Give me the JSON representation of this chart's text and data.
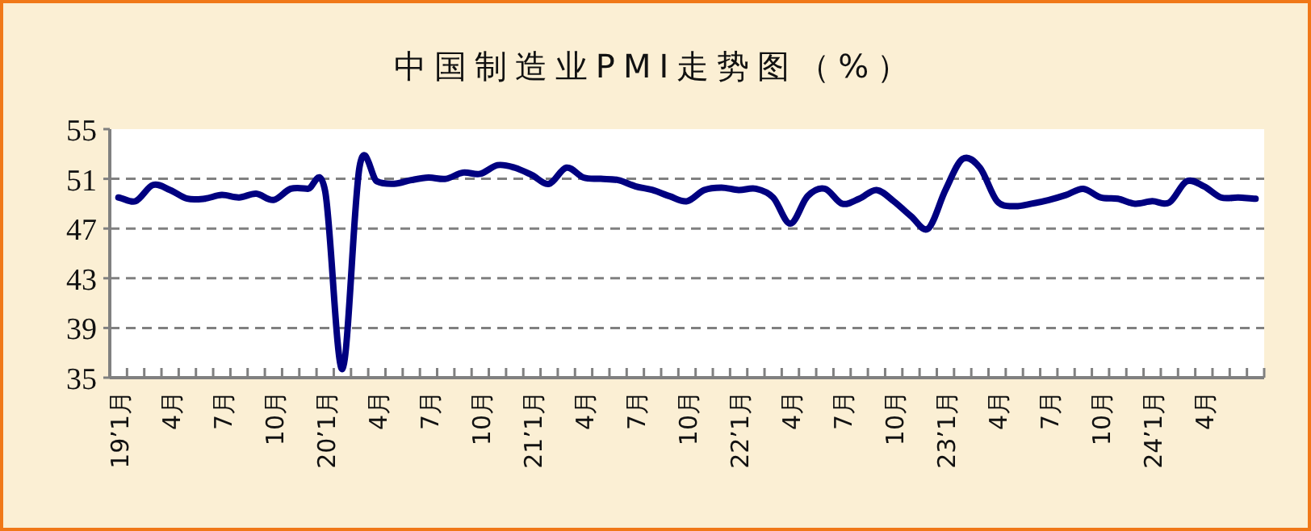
{
  "chart_data": {
    "type": "line",
    "title": "中国制造业PMI走势图（%）",
    "categories": [
      "19’1月",
      null,
      null,
      "4月",
      null,
      null,
      "7月",
      null,
      null,
      "10月",
      null,
      null,
      "20’1月",
      null,
      null,
      "4月",
      null,
      null,
      "7月",
      null,
      null,
      "10月",
      null,
      null,
      "21’1月",
      null,
      null,
      "4月",
      null,
      null,
      "7月",
      null,
      null,
      "10月",
      null,
      null,
      "22’1月",
      null,
      null,
      "4月",
      null,
      null,
      "7月",
      null,
      null,
      "10月",
      null,
      null,
      "23’1月",
      null,
      null,
      "4月",
      null,
      null,
      "7月",
      null,
      null,
      "10月",
      null,
      null,
      "24’1月",
      null,
      null,
      "4月",
      null,
      null,
      null
    ],
    "series": [
      {
        "color": "#000080",
        "values": [
          49.5,
          49.2,
          50.5,
          50.1,
          49.4,
          49.4,
          49.7,
          49.5,
          49.8,
          49.3,
          50.2,
          50.2,
          50.0,
          35.7,
          52.0,
          50.8,
          50.6,
          50.9,
          51.1,
          51.0,
          51.5,
          51.4,
          52.1,
          51.9,
          51.3,
          50.6,
          51.9,
          51.1,
          51.0,
          50.9,
          50.4,
          50.1,
          49.6,
          49.2,
          50.1,
          50.3,
          50.1,
          50.2,
          49.5,
          47.4,
          49.6,
          50.2,
          49.0,
          49.4,
          50.1,
          49.2,
          48.0,
          47.0,
          50.1,
          52.6,
          51.9,
          49.2,
          48.8,
          49.0,
          49.3,
          49.7,
          50.2,
          49.5,
          49.4,
          49.0,
          49.2,
          49.1,
          50.8,
          50.4,
          49.5,
          49.5,
          49.4
        ]
      }
    ],
    "ylim": [
      35,
      55
    ],
    "yticks": [
      35,
      39,
      43,
      47,
      51,
      55
    ],
    "grid": "y",
    "marker": "none",
    "line_style": "solid"
  }
}
